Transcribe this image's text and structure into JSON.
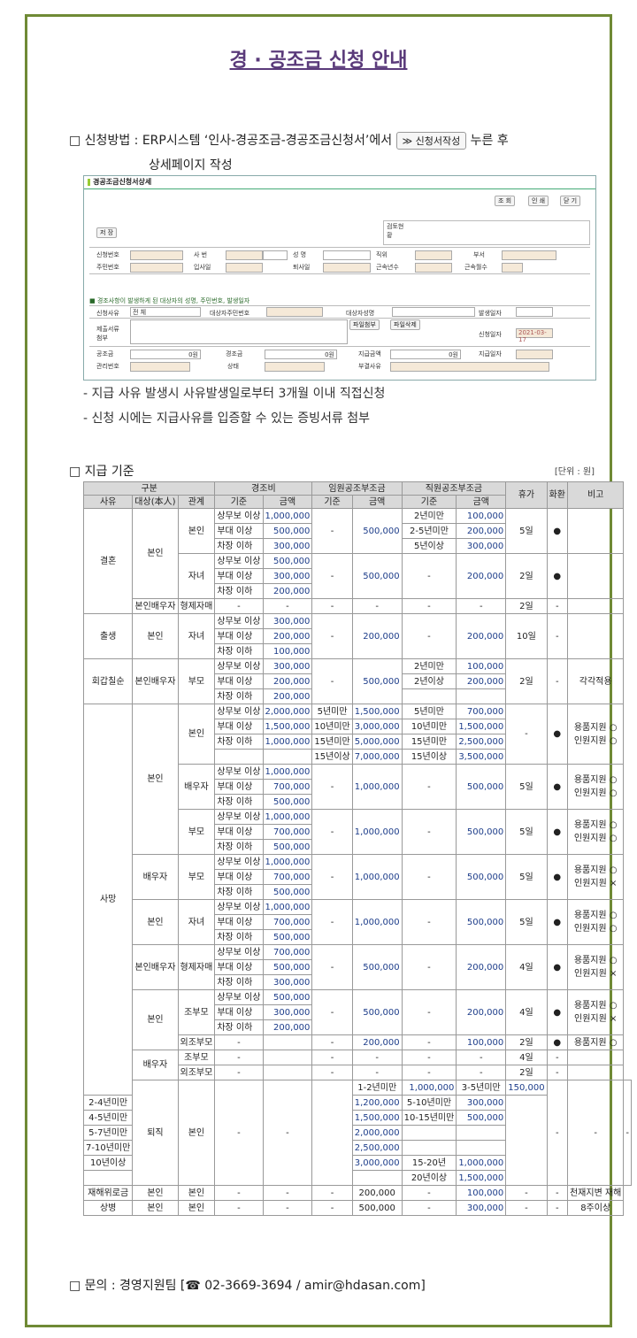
{
  "title": "경 · 공조금 신청 안내",
  "method": {
    "prefix": "□ 신청방법 : ERP시스템 ‘인사-경공조금-경공조금신청서’에서",
    "button": "신청서작성",
    "suffix": "누른 후",
    "line2": "상세페이지 작성"
  },
  "erp": {
    "header": "경공조금신청서상세",
    "btn_search": "조 회",
    "btn_print": "인 쇄",
    "btn_close": "닫 기",
    "btn_save": "저 장",
    "review": "검토현황",
    "row1": [
      "신청번호",
      "사 번",
      "성 명",
      "직위",
      "부서"
    ],
    "row2": [
      "주민번호",
      "입사일",
      "퇴사일",
      "근속년수",
      "근속월수"
    ],
    "note": "경조사항이 발생하게 된 대상자의 성명, 주민번호, 발생일자",
    "r3": [
      "신청사유",
      "전 체",
      "대상자주민번호",
      "대상자성명",
      "발생일자"
    ],
    "r4": [
      "제출서류첨부",
      "파일첨부",
      "파일삭제",
      "신청일자",
      "2021-03-17"
    ],
    "r5": [
      "공조금",
      "0원",
      "경조금",
      "0원",
      "지급금액",
      "0원",
      "지급일자"
    ],
    "r6": [
      "관리번호",
      "상태",
      "부결사유"
    ]
  },
  "bullets": [
    "- 지급 사유 발생시 사유발생일로부터 3개월 이내 직접신청",
    "- 신청 시에는 지급사유를 입증할 수 있는 증빙서류 첨부"
  ],
  "criteria_title": "□ 지급 기준",
  "unit": "[단위 : 원]",
  "table_head": {
    "gubun": "구분",
    "sayu": "사유",
    "target": "대상(本人)",
    "rel": "관계",
    "kyeong": "경조비",
    "im": "임원공조부조금",
    "jik": "직원공조부조금",
    "crit": "기준",
    "amt": "금액",
    "leave": "휴가",
    "wreath": "화환",
    "note": "비고"
  },
  "footer": "□ 문의 : 경영지원팀 [☎ 02-3669-3694 / amir@hdasan.com]"
}
